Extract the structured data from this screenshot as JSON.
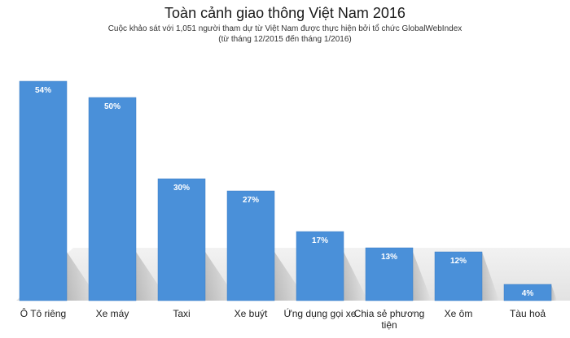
{
  "chart_data": {
    "type": "bar",
    "title": "Toàn cảnh giao thông Việt Nam 2016",
    "subtitle": [
      "Cuộc khảo sát với 1,051 người tham dự từ Việt Nam được thực hiện bởi tổ chức GlobalWebIndex",
      "(từ tháng 12/2015 đến tháng 1/2016)"
    ],
    "categories": [
      [
        "Ô Tô riêng"
      ],
      [
        "Xe máy"
      ],
      [
        "Taxi"
      ],
      [
        "Xe buýt"
      ],
      [
        "Ứng dụng gọi xe"
      ],
      [
        "Chia sẻ phương",
        "tiện"
      ],
      [
        "Xe ôm"
      ],
      [
        "Tàu hoả"
      ]
    ],
    "values": [
      54,
      50,
      30,
      27,
      17,
      13,
      12,
      4
    ],
    "value_labels": [
      "54%",
      "50%",
      "30%",
      "27%",
      "17%",
      "13%",
      "12%",
      "4%"
    ],
    "ylim": [
      0,
      55
    ],
    "grid": false,
    "colors": {
      "bar": "#4a90d9",
      "bar_dark": "#3a7cc4",
      "floor": "#e6e6e6"
    }
  }
}
